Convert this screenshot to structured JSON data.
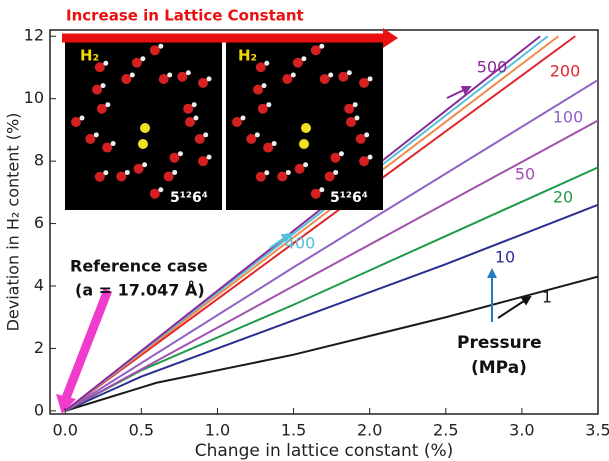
{
  "chart_data": {
    "type": "line",
    "x_label": "Change in lattice constant (%)",
    "y_label": "Deviation in H₂ content (%)",
    "xlim": [
      -0.1,
      3.5
    ],
    "ylim": [
      -0.1,
      12.2
    ],
    "xticks": [
      {
        "value": 0,
        "label": "0.0"
      },
      0.5,
      {
        "value": 1,
        "label": "1.0"
      },
      1.5,
      {
        "value": 2,
        "label": "2.0"
      },
      2.5,
      {
        "value": 3,
        "label": "3.0"
      },
      3.5
    ],
    "yticks": [
      0,
      2,
      4,
      6,
      8,
      10,
      12
    ],
    "series": [
      {
        "name": "1",
        "color": "#1a1a1a",
        "x": [
          0,
          0.6,
          1.5,
          2.5,
          3.5
        ],
        "values": [
          0,
          0.9,
          1.8,
          3.0,
          4.3
        ]
      },
      {
        "name": "10",
        "color": "#2b2f8f",
        "x": [
          0,
          0.5,
          1.5,
          2.5,
          3.5
        ],
        "values": [
          0,
          1.1,
          2.9,
          4.7,
          6.6
        ]
      },
      {
        "name": "20",
        "color": "#1f9a4a",
        "x": [
          0,
          0.5,
          1.5,
          2.5,
          3.5
        ],
        "values": [
          0,
          1.3,
          3.4,
          5.6,
          7.8
        ]
      },
      {
        "name": "50",
        "color": "#a24fae",
        "x": [
          0,
          1.5,
          3.5
        ],
        "values": [
          0,
          4.0,
          9.3
        ]
      },
      {
        "name": "100",
        "color": "#8e63c4",
        "x": [
          0,
          1.5,
          3.5
        ],
        "values": [
          0,
          4.6,
          10.6
        ]
      },
      {
        "name": "200",
        "color": "#e0262b",
        "x": [
          0,
          3.35
        ],
        "values": [
          0,
          12
        ]
      },
      {
        "color": "#f08a4b",
        "x": [
          0,
          3.24
        ],
        "values": [
          0,
          12
        ]
      },
      {
        "name": "400",
        "color": "#55c0d8",
        "x": [
          0,
          3.17
        ],
        "values": [
          0,
          12
        ]
      },
      {
        "name": "500",
        "color": "#8b2a9b",
        "x": [
          0,
          3.12
        ],
        "values": [
          0,
          12
        ]
      }
    ],
    "annotations": {
      "top_arrow": "Increase in Lattice Constant",
      "reference": "Reference case",
      "reference_value": "(a = 17.047 Å)",
      "pressure": "Pressure",
      "pressure_unit": "(MPa)",
      "inset_left_label": "H₂",
      "inset_left_cage": "5¹²6⁴",
      "inset_right_label": "H₂",
      "inset_right_cage": "5¹²6⁴"
    }
  }
}
